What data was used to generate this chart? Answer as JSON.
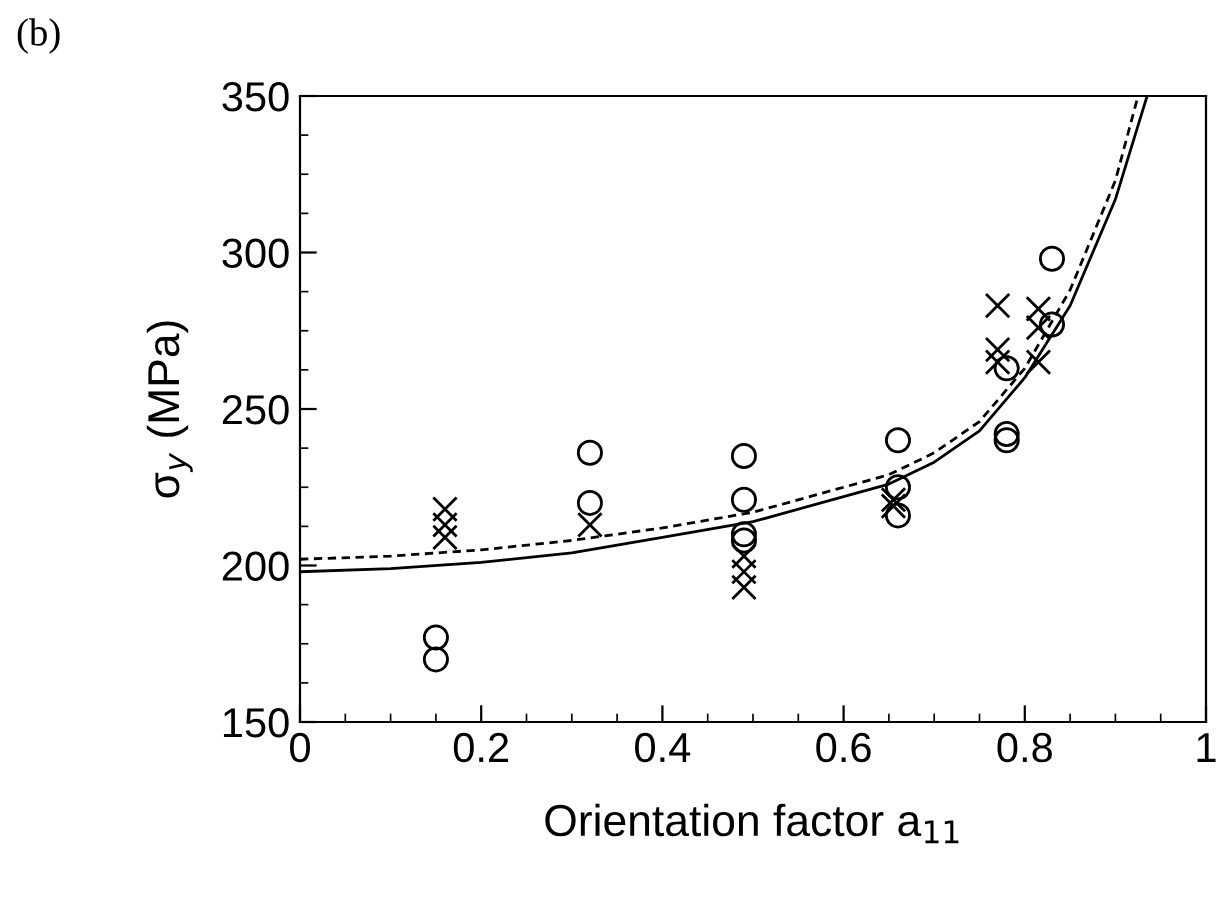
{
  "chart_data": {
    "type": "scatter",
    "xlabel": "Orientation factor a$_{11}$",
    "ylabel": "σ$_{y}$ (MPa)",
    "annotations": [
      "(b)"
    ],
    "xlim": [
      0,
      1
    ],
    "ylim": [
      150,
      350
    ],
    "xticks": [
      0,
      0.2,
      0.4,
      0.6,
      0.8,
      1
    ],
    "yticks": [
      150,
      200,
      250,
      300,
      350
    ],
    "grid": false,
    "legend": false,
    "series": [
      {
        "marker": "circle",
        "color": "#000000",
        "x": [
          0.15,
          0.15,
          0.32,
          0.32,
          0.49,
          0.49,
          0.49,
          0.49,
          0.66,
          0.66,
          0.66,
          0.78,
          0.78,
          0.78,
          0.83,
          0.83
        ],
        "values": [
          177,
          170,
          236,
          220,
          235,
          221,
          210,
          208,
          240,
          225,
          216,
          263,
          242,
          240,
          298,
          277
        ]
      },
      {
        "marker": "cross",
        "color": "#000000",
        "x": [
          0.16,
          0.16,
          0.16,
          0.32,
          0.49,
          0.49,
          0.49,
          0.655,
          0.655,
          0.77,
          0.77,
          0.77,
          0.815,
          0.815,
          0.815
        ],
        "values": [
          218,
          213,
          209,
          213,
          203,
          198,
          193,
          221,
          219,
          283,
          269,
          265,
          282,
          276,
          265
        ]
      },
      {
        "type": "line",
        "line_style": "solid",
        "marker": "none",
        "color": "#000000",
        "x": [
          0,
          0.1,
          0.2,
          0.3,
          0.4,
          0.5,
          0.6,
          0.65,
          0.7,
          0.75,
          0.8,
          0.85,
          0.9,
          0.935
        ],
        "values": [
          198,
          199,
          201,
          204,
          209,
          214,
          222,
          226,
          233,
          243,
          260,
          283,
          317,
          350
        ]
      },
      {
        "type": "line",
        "line_style": "dashed",
        "marker": "none",
        "color": "#000000",
        "x": [
          0,
          0.1,
          0.2,
          0.3,
          0.4,
          0.5,
          0.6,
          0.65,
          0.7,
          0.75,
          0.8,
          0.85,
          0.9,
          0.925
        ],
        "values": [
          202,
          203,
          205,
          208,
          212,
          217,
          225,
          229,
          236,
          246,
          263,
          288,
          323,
          350
        ]
      }
    ]
  }
}
